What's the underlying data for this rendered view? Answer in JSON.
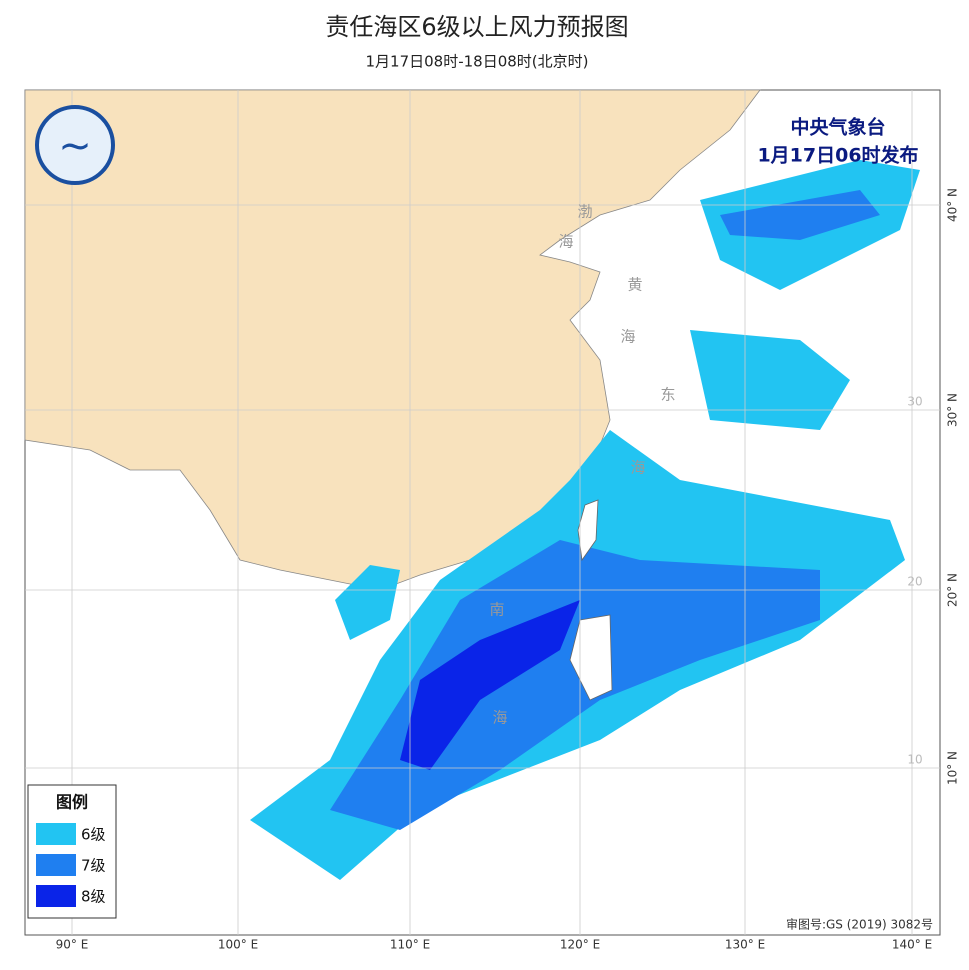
{
  "header": {
    "title": "责任海区6级以上风力预报图",
    "subtitle": "1月17日08时-18日08时(北京时)"
  },
  "issuer": {
    "name": "中央气象台",
    "time": "1月17日06时发布"
  },
  "legend": {
    "title": "图例",
    "items": [
      {
        "label": "6级",
        "color": "#22c4f2"
      },
      {
        "label": "7级",
        "color": "#1f7ff0"
      },
      {
        "label": "8级",
        "color": "#0a24e8"
      }
    ]
  },
  "longitude_labels": [
    "90° E",
    "100° E",
    "110° E",
    "120° E",
    "130° E",
    "140° E"
  ],
  "latitude_labels": [
    "40° N",
    "30° N",
    "20° N",
    "10° N"
  ],
  "inner_latitude_labels": [
    "30",
    "20",
    "10"
  ],
  "sea_labels": [
    "渤",
    "海",
    "黄",
    "海",
    "东",
    "海",
    "南",
    "海"
  ],
  "approval": "审图号:GS (2019) 3082号"
}
